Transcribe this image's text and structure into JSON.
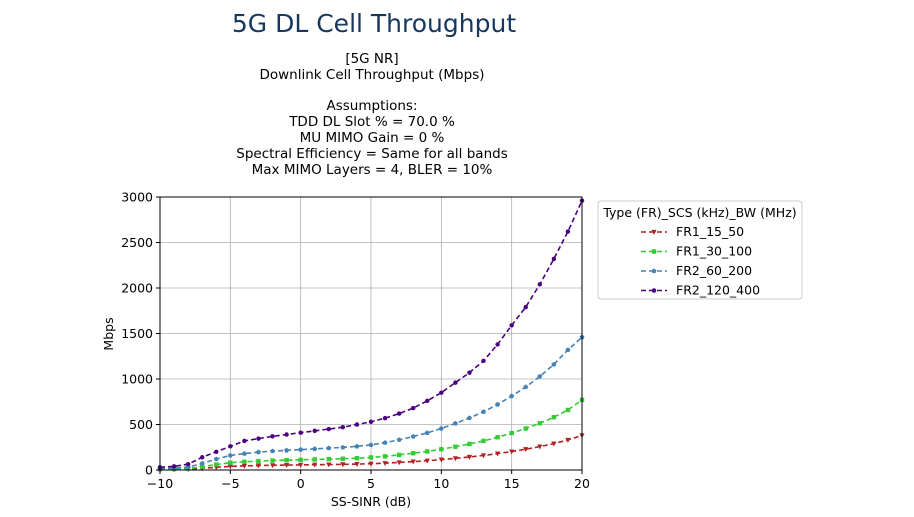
{
  "page_title": "5G DL Cell Throughput",
  "subtitle_lines": [
    "[5G NR]",
    "Downlink Cell Throughput (Mbps)",
    "",
    "Assumptions:",
    "TDD DL Slot % = 70.0 %",
    "MU MIMO Gain = 0 %",
    "Spectral Efficiency = Same for all bands",
    "Max MIMO Layers = 4, BLER = 10%"
  ],
  "chart_data": {
    "type": "line",
    "xlabel": "SS-SINR (dB)",
    "ylabel": "Mbps",
    "xlim": [
      -10,
      20
    ],
    "ylim": [
      0,
      3000
    ],
    "xticks": [
      -10,
      -5,
      0,
      5,
      10,
      15,
      20
    ],
    "xtick_labels": [
      "−10",
      "−5",
      "0",
      "5",
      "10",
      "15",
      "20"
    ],
    "yticks": [
      0,
      500,
      1000,
      1500,
      2000,
      2500,
      3000
    ],
    "grid": true,
    "legend": {
      "title": "Type (FR)_SCS (kHz)_BW (MHz)",
      "position": "outside-right"
    },
    "x": [
      -10,
      -9,
      -8,
      -7,
      -6,
      -5,
      -4,
      -3,
      -2,
      -1,
      0,
      1,
      2,
      3,
      4,
      5,
      6,
      7,
      8,
      9,
      10,
      11,
      12,
      13,
      14,
      15,
      16,
      17,
      18,
      19,
      20
    ],
    "series": [
      {
        "name": "FR1_15_50",
        "color": "#b22222",
        "marker": "triangle-down",
        "values": [
          4,
          5,
          8,
          18,
          30,
          40,
          45,
          49,
          52,
          54,
          56,
          58,
          60,
          62,
          65,
          69,
          75,
          83,
          92,
          102,
          114,
          128,
          143,
          160,
          180,
          203,
          228,
          257,
          290,
          330,
          380
        ]
      },
      {
        "name": "FR1_30_100",
        "color": "#32cd32",
        "marker": "square",
        "values": [
          8,
          10,
          16,
          36,
          60,
          80,
          90,
          98,
          104,
          108,
          112,
          116,
          120,
          124,
          130,
          138,
          150,
          166,
          184,
          204,
          228,
          256,
          286,
          320,
          360,
          406,
          456,
          514,
          580,
          660,
          770
        ]
      },
      {
        "name": "FR2_60_200",
        "color": "#4682b4",
        "marker": "pentagon",
        "values": [
          15,
          20,
          32,
          72,
          120,
          160,
          180,
          196,
          208,
          216,
          224,
          232,
          240,
          248,
          260,
          276,
          300,
          332,
          368,
          408,
          456,
          512,
          572,
          640,
          720,
          812,
          912,
          1028,
          1160,
          1320,
          1460
        ]
      },
      {
        "name": "FR2_120_400",
        "color": "#4b0082",
        "marker": "circle",
        "values": [
          30,
          40,
          64,
          140,
          200,
          260,
          320,
          345,
          370,
          390,
          410,
          430,
          450,
          470,
          500,
          530,
          570,
          620,
          680,
          760,
          850,
          960,
          1070,
          1200,
          1380,
          1590,
          1790,
          2040,
          2320,
          2620,
          2960
        ]
      }
    ]
  }
}
